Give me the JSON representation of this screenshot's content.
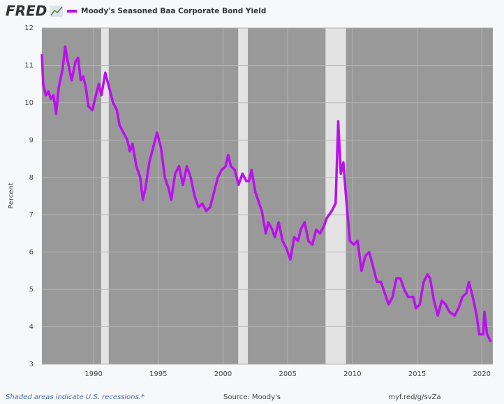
{
  "logo": "FRED",
  "chart_data": {
    "type": "line",
    "ylabel": "Percent",
    "series": [
      {
        "name": "Moody's Seasoned Baa Corporate Bond Yield",
        "color": "#bb10ee",
        "values": [
          11.3,
          10.5,
          10.2,
          10.3,
          10.1,
          10.2,
          9.7,
          10.4,
          10.9,
          11.5,
          11.1,
          10.6,
          11.1,
          11.2,
          10.6,
          10.7,
          10.4,
          9.9,
          9.8,
          10.1,
          10.5,
          10.2,
          10.8,
          10.4,
          10.0,
          9.8,
          9.4,
          9.2,
          9.0,
          8.7,
          8.9,
          8.3,
          8.0,
          7.4,
          7.7,
          8.4,
          8.8,
          9.2,
          8.8,
          8.0,
          7.7,
          7.4,
          8.1,
          8.3,
          7.8,
          8.3,
          8.0,
          7.5,
          7.2,
          7.3,
          7.1,
          7.2,
          7.6,
          8.0,
          8.2,
          8.3,
          8.6,
          8.3,
          8.2,
          7.8,
          8.1,
          7.9,
          7.9,
          8.2,
          7.6,
          7.3,
          7.1,
          6.5,
          6.8,
          6.6,
          6.4,
          6.8,
          6.3,
          6.1,
          5.8,
          6.4,
          6.3,
          6.6,
          6.8,
          6.3,
          6.2,
          6.6,
          6.5,
          6.7,
          6.9,
          7.1,
          7.3,
          9.5,
          8.1,
          8.4,
          7.5,
          6.3,
          6.2,
          6.3,
          5.5,
          5.9,
          6.0,
          5.6,
          5.2,
          5.2,
          4.9,
          4.6,
          4.8,
          5.3,
          5.3,
          5.0,
          4.8,
          4.8,
          4.5,
          4.6,
          5.2,
          5.4,
          5.3,
          4.7,
          4.3,
          4.7,
          4.6,
          4.4,
          4.3,
          4.5,
          4.8,
          4.9,
          5.2,
          4.8,
          4.3,
          3.8,
          3.8,
          4.4,
          3.8,
          3.6
        ]
      }
    ],
    "x": [
      1986.0,
      1986.1,
      1986.3,
      1986.5,
      1986.7,
      1986.9,
      1987.1,
      1987.3,
      1987.6,
      1987.8,
      1988.0,
      1988.3,
      1988.6,
      1988.8,
      1989.0,
      1989.2,
      1989.4,
      1989.6,
      1989.9,
      1990.1,
      1990.4,
      1990.6,
      1990.9,
      1991.2,
      1991.5,
      1991.8,
      1992.0,
      1992.3,
      1992.6,
      1992.8,
      1993.0,
      1993.3,
      1993.6,
      1993.8,
      1994.0,
      1994.3,
      1994.6,
      1994.9,
      1995.2,
      1995.5,
      1995.8,
      1996.0,
      1996.3,
      1996.6,
      1996.9,
      1997.2,
      1997.5,
      1997.8,
      1998.1,
      1998.4,
      1998.7,
      1999.0,
      1999.3,
      1999.6,
      1999.9,
      2000.2,
      2000.4,
      2000.6,
      2000.9,
      2001.2,
      2001.5,
      2001.8,
      2002.0,
      2002.2,
      2002.5,
      2002.8,
      2003.0,
      2003.3,
      2003.5,
      2003.8,
      2004.0,
      2004.3,
      2004.6,
      2004.9,
      2005.2,
      2005.5,
      2005.8,
      2006.0,
      2006.3,
      2006.6,
      2006.9,
      2007.2,
      2007.5,
      2007.8,
      2008.0,
      2008.4,
      2008.7,
      2008.9,
      2009.1,
      2009.3,
      2009.5,
      2009.8,
      2010.1,
      2010.4,
      2010.7,
      2011.0,
      2011.3,
      2011.6,
      2011.9,
      2012.2,
      2012.5,
      2012.8,
      2013.1,
      2013.4,
      2013.7,
      2014.0,
      2014.3,
      2014.7,
      2014.9,
      2015.2,
      2015.5,
      2015.8,
      2016.0,
      2016.3,
      2016.6,
      2016.9,
      2017.2,
      2017.5,
      2017.9,
      2018.2,
      2018.5,
      2018.8,
      2019.0,
      2019.3,
      2019.6,
      2019.8,
      2020.1,
      2020.2,
      2020.4,
      2020.7
    ],
    "recessions": [
      [
        1990.58,
        1991.17
      ],
      [
        2001.17,
        2001.92
      ],
      [
        2007.92,
        2009.5
      ]
    ],
    "xlim": [
      1986.0,
      2020.85
    ],
    "xticks": [
      1990,
      1995,
      2000,
      2005,
      2010,
      2015,
      2020
    ],
    "ylim": [
      3,
      12
    ],
    "yticks": [
      3,
      4,
      5,
      6,
      7,
      8,
      9,
      10,
      11,
      12
    ],
    "grid": true,
    "footer": {
      "note": "Shaded areas indicate U.S. recessions.*",
      "source": "Source: Moody's",
      "link": "myf.red/g/svZa"
    }
  }
}
